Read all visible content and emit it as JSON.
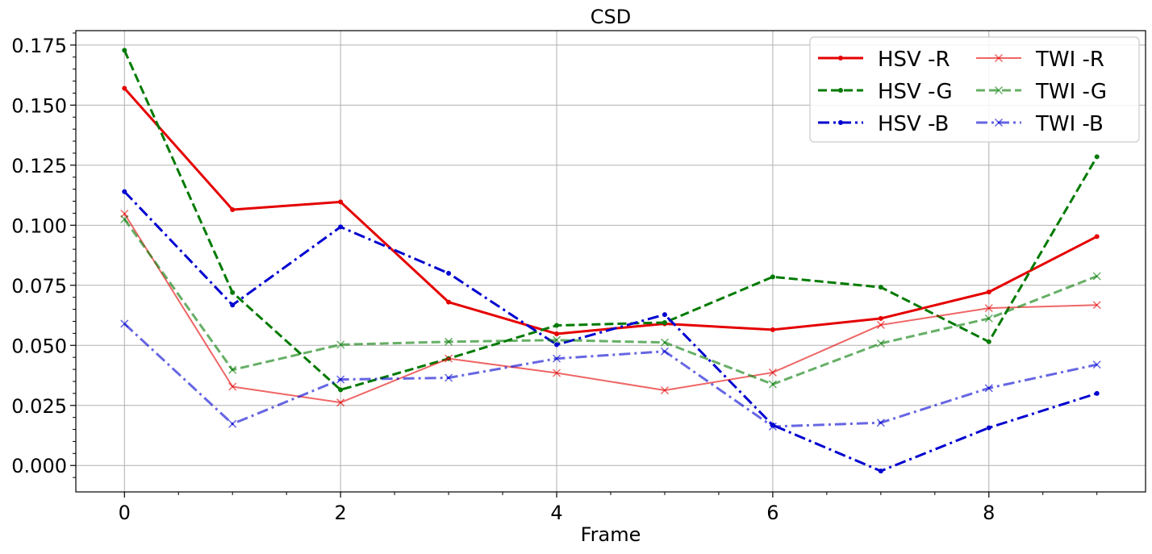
{
  "chart_data": {
    "type": "line",
    "title": "CSD",
    "xlabel": "Frame",
    "ylabel": "",
    "x": [
      0,
      1,
      2,
      3,
      4,
      5,
      6,
      7,
      8,
      9
    ],
    "xlim": [
      -0.45,
      9.45
    ],
    "ylim": [
      -0.011,
      0.181
    ],
    "xticks": [
      0,
      2,
      4,
      6,
      8
    ],
    "xtick_labels": [
      "0",
      "2",
      "4",
      "6",
      "8"
    ],
    "yticks": [
      0.0,
      0.025,
      0.05,
      0.075,
      0.1,
      0.125,
      0.15,
      0.175
    ],
    "ytick_labels": [
      "0.000",
      "0.025",
      "0.050",
      "0.075",
      "0.100",
      "0.125",
      "0.150",
      "0.175"
    ],
    "grid": true,
    "legend_position": "top-right",
    "series": [
      {
        "name": "HSV -R",
        "color": "#e50000",
        "dash": "solid",
        "marker": "dot",
        "opacity": 1.0,
        "values": [
          0.157,
          0.1065,
          0.1097,
          0.068,
          0.0548,
          0.059,
          0.0565,
          0.0612,
          0.0722,
          0.0953
        ]
      },
      {
        "name": "HSV -G",
        "color": "#007a00",
        "dash": "dashed",
        "marker": "dot",
        "opacity": 1.0,
        "values": [
          0.1728,
          0.072,
          0.0315,
          0.0445,
          0.0583,
          0.0595,
          0.0785,
          0.0742,
          0.0515,
          0.1285
        ]
      },
      {
        "name": "HSV -B",
        "color": "#0000d0",
        "dash": "dashdot",
        "marker": "dot",
        "opacity": 1.0,
        "values": [
          0.114,
          0.0668,
          0.0993,
          0.08,
          0.0503,
          0.0628,
          0.0168,
          -0.0023,
          0.0157,
          0.03
        ]
      },
      {
        "name": "TWI -R",
        "color": "#e50000",
        "dash": "solid",
        "marker": "x",
        "opacity": 0.6,
        "values": [
          0.1048,
          0.0328,
          0.0262,
          0.0445,
          0.0385,
          0.0313,
          0.0387,
          0.0585,
          0.0655,
          0.0668
        ]
      },
      {
        "name": "TWI -G",
        "color": "#007a00",
        "dash": "dashed",
        "marker": "x",
        "opacity": 0.6,
        "values": [
          0.1025,
          0.0398,
          0.0503,
          0.0515,
          0.0522,
          0.0512,
          0.0338,
          0.0508,
          0.0612,
          0.0788
        ]
      },
      {
        "name": "TWI -B",
        "color": "#0000d0",
        "dash": "dashdot",
        "marker": "x",
        "opacity": 0.6,
        "values": [
          0.059,
          0.0173,
          0.0358,
          0.0365,
          0.0445,
          0.0475,
          0.0162,
          0.0178,
          0.0322,
          0.042
        ]
      }
    ]
  }
}
